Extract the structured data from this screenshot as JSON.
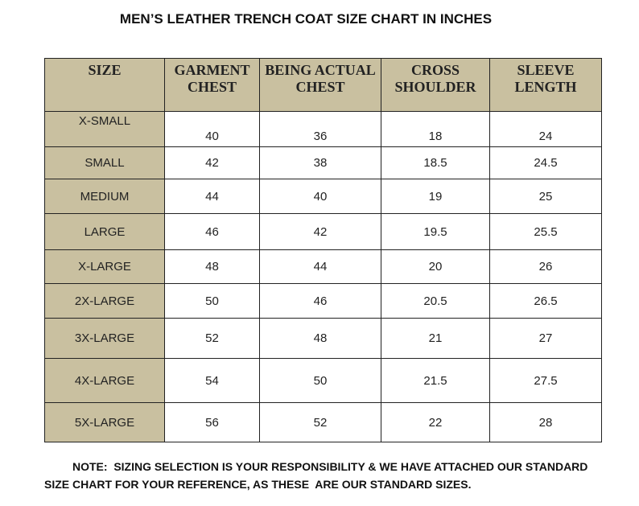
{
  "title": "MEN’S LEATHER TRENCH COAT SIZE CHART IN INCHES",
  "table": {
    "header": [
      "SIZE",
      "GARMENT CHEST",
      "BEING ACTUAL CHEST",
      "CROSS SHOULDER",
      "SLEEVE LENGTH"
    ],
    "rows": [
      [
        "X-SMALL",
        40,
        36,
        18,
        24
      ],
      [
        "SMALL",
        42,
        38,
        18.5,
        24.5
      ],
      [
        "MEDIUM",
        44,
        40,
        19,
        25
      ],
      [
        "LARGE",
        46,
        42,
        19.5,
        25.5
      ],
      [
        "X-LARGE",
        48,
        44,
        20,
        26
      ],
      [
        "2X-LARGE",
        50,
        46,
        20.5,
        26.5
      ],
      [
        "3X-LARGE",
        52,
        48,
        21,
        27
      ],
      [
        "4X-LARGE",
        54,
        50,
        21.5,
        27.5
      ],
      [
        "5X-LARGE",
        56,
        52,
        22,
        28
      ]
    ]
  },
  "note": [
    "NOTE:  SIZING SELECTION IS YOUR RESPONSIBILITY & WE HAVE ATTACHED OUR STANDARD",
    "SIZE CHART FOR YOUR REFERENCE, AS THESE  ARE OUR STANDARD SIZES."
  ]
}
